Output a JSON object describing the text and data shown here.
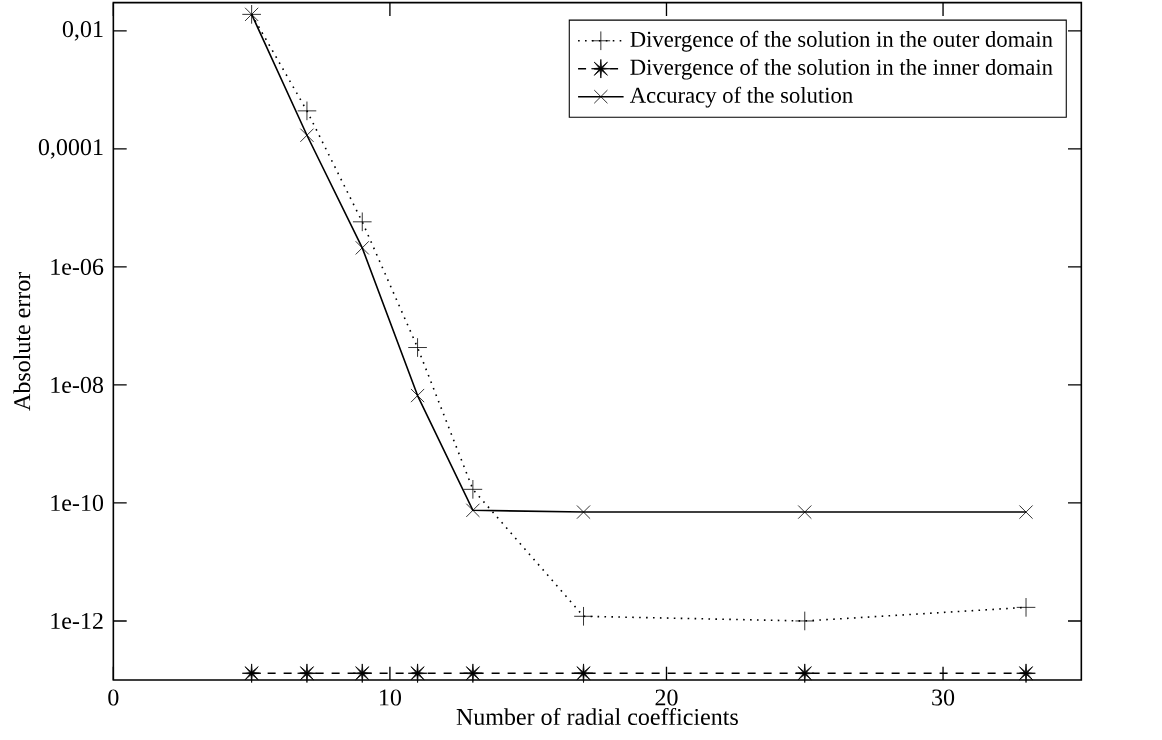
{
  "chart_data": {
    "type": "line",
    "xlabel": "Number of radial coefficients",
    "ylabel": "Absolute error",
    "log": "y",
    "xlim": [
      0,
      35
    ],
    "xticks": [
      0,
      10,
      20,
      30
    ],
    "ylim": [
      1e-13,
      0.03
    ],
    "yticks": [
      {
        "value": 0.01,
        "label": "0,01"
      },
      {
        "value": 0.0001,
        "label": "0,0001"
      },
      {
        "value": 1e-06,
        "label": "1e-06"
      },
      {
        "value": 1e-08,
        "label": "1e-08"
      },
      {
        "value": 1e-10,
        "label": "1e-10"
      },
      {
        "value": 1e-12,
        "label": "1e-12"
      }
    ],
    "x": [
      5,
      7,
      9,
      11,
      13,
      17,
      25,
      33
    ],
    "grid": false,
    "legend": "top right",
    "series": [
      {
        "name": "Divergence of the solution in the outer domain",
        "color": "#000000",
        "marker": "plus",
        "line_style": "dotted",
        "values": [
          0.019,
          0.00044,
          5.8e-06,
          4.3e-08,
          1.7e-10,
          1.2e-12,
          1e-12,
          1.7e-12
        ]
      },
      {
        "name": "Divergence of the solution in the inner domain",
        "color": "#000000",
        "marker": "star",
        "line_style": "dashed",
        "values": [
          1.3e-13,
          1.3e-13,
          1.3e-13,
          1.3e-13,
          1.3e-13,
          1.3e-13,
          1.3e-13,
          1.3e-13
        ]
      },
      {
        "name": "Accuracy of the solution",
        "color": "#000000",
        "marker": "cross",
        "line_style": "solid",
        "values": [
          0.019,
          0.00017,
          2.1e-06,
          6.6e-09,
          7.5e-11,
          7e-11,
          7e-11,
          7e-11
        ]
      }
    ]
  }
}
